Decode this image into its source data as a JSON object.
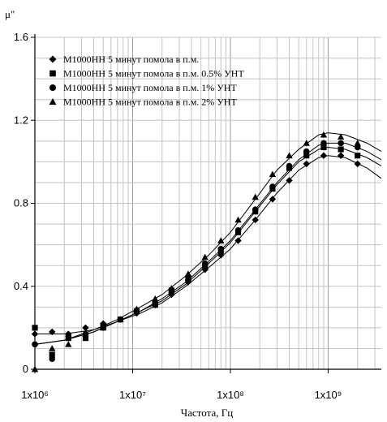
{
  "chart_data": {
    "type": "scatter",
    "xlabel": "Частота, Гц",
    "ylabel": "μ\"",
    "xscale": "log",
    "xlim": [
      1000000,
      3500000000
    ],
    "ylim": [
      0,
      1.6
    ],
    "grid": true,
    "legend_position": "top-left",
    "x_ticks": [
      {
        "value": 1000000,
        "label": "1x10⁶"
      },
      {
        "value": 10000000,
        "label": "1x10⁷"
      },
      {
        "value": 100000000,
        "label": "1x10⁸"
      },
      {
        "value": 1000000000,
        "label": "1x10⁹"
      }
    ],
    "y_ticks": [
      {
        "value": 0,
        "label": "0"
      },
      {
        "value": 0.4,
        "label": "0.4"
      },
      {
        "value": 0.8,
        "label": "0.8"
      },
      {
        "value": 1.2,
        "label": "1.2"
      },
      {
        "value": 1.6,
        "label": "1.6"
      }
    ],
    "series": [
      {
        "name": "М1000НН 5 минут помола в п.м.",
        "marker": "diamond",
        "points": [
          [
            1000000,
            0.17
          ],
          [
            1500000,
            0.18
          ],
          [
            2200000,
            0.17
          ],
          [
            3300000,
            0.2
          ],
          [
            5000000,
            0.22
          ],
          [
            7500000,
            0.24
          ],
          [
            11000000,
            0.27
          ],
          [
            17000000,
            0.31
          ],
          [
            25000000,
            0.36
          ],
          [
            37000000,
            0.42
          ],
          [
            55000000,
            0.48
          ],
          [
            80000000,
            0.55
          ],
          [
            120000000,
            0.62
          ],
          [
            180000000,
            0.72
          ],
          [
            270000000,
            0.82
          ],
          [
            400000000,
            0.91
          ],
          [
            600000000,
            0.99
          ],
          [
            900000000,
            1.03
          ],
          [
            1350000000,
            1.03
          ],
          [
            2000000000,
            0.99
          ]
        ],
        "curve": [
          [
            1000000,
            0.17
          ],
          [
            2000000,
            0.17
          ],
          [
            4000000,
            0.19
          ],
          [
            7000000,
            0.23
          ],
          [
            12000000,
            0.27
          ],
          [
            20000000,
            0.32
          ],
          [
            35000000,
            0.4
          ],
          [
            60000000,
            0.49
          ],
          [
            100000000,
            0.58
          ],
          [
            180000000,
            0.72
          ],
          [
            300000000,
            0.85
          ],
          [
            500000000,
            0.96
          ],
          [
            800000000,
            1.02
          ],
          [
            1000000000,
            1.03
          ],
          [
            1500000000,
            1.02
          ],
          [
            2500000000,
            0.97
          ],
          [
            3500000000,
            0.92
          ]
        ]
      },
      {
        "name": "М1000НН 5 минут помола в п.м. 0.5% УНТ",
        "marker": "square",
        "points": [
          [
            1000000,
            0.2
          ],
          [
            1500000,
            0.07
          ],
          [
            2200000,
            0.15
          ],
          [
            3300000,
            0.15
          ],
          [
            5000000,
            0.21
          ],
          [
            7500000,
            0.24
          ],
          [
            11000000,
            0.28
          ],
          [
            17000000,
            0.31
          ],
          [
            25000000,
            0.38
          ],
          [
            37000000,
            0.44
          ],
          [
            55000000,
            0.5
          ],
          [
            80000000,
            0.57
          ],
          [
            120000000,
            0.66
          ],
          [
            180000000,
            0.76
          ],
          [
            270000000,
            0.87
          ],
          [
            400000000,
            0.97
          ],
          [
            600000000,
            1.03
          ],
          [
            900000000,
            1.07
          ],
          [
            1350000000,
            1.06
          ],
          [
            2000000000,
            1.03
          ]
        ],
        "curve": [
          [
            1000000,
            0.12
          ],
          [
            2000000,
            0.14
          ],
          [
            4000000,
            0.18
          ],
          [
            7000000,
            0.23
          ],
          [
            12000000,
            0.28
          ],
          [
            20000000,
            0.33
          ],
          [
            35000000,
            0.41
          ],
          [
            60000000,
            0.51
          ],
          [
            100000000,
            0.61
          ],
          [
            180000000,
            0.76
          ],
          [
            300000000,
            0.89
          ],
          [
            500000000,
            1.0
          ],
          [
            800000000,
            1.06
          ],
          [
            1000000000,
            1.07
          ],
          [
            1500000000,
            1.06
          ],
          [
            2500000000,
            1.02
          ],
          [
            3500000000,
            0.98
          ]
        ]
      },
      {
        "name": "М1000НН 5 минут помола в п.м. 1% УНТ",
        "marker": "circle",
        "points": [
          [
            1000000,
            0.12
          ],
          [
            1500000,
            0.05
          ],
          [
            2200000,
            0.16
          ],
          [
            3300000,
            0.17
          ],
          [
            5000000,
            0.2
          ],
          [
            7500000,
            0.24
          ],
          [
            11000000,
            0.28
          ],
          [
            17000000,
            0.32
          ],
          [
            25000000,
            0.37
          ],
          [
            37000000,
            0.43
          ],
          [
            55000000,
            0.51
          ],
          [
            80000000,
            0.58
          ],
          [
            120000000,
            0.67
          ],
          [
            180000000,
            0.77
          ],
          [
            270000000,
            0.88
          ],
          [
            400000000,
            0.98
          ],
          [
            600000000,
            1.05
          ],
          [
            900000000,
            1.09
          ],
          [
            1350000000,
            1.09
          ],
          [
            2000000000,
            1.07
          ]
        ],
        "curve": [
          [
            1000000,
            0.12
          ],
          [
            2000000,
            0.14
          ],
          [
            4000000,
            0.18
          ],
          [
            7000000,
            0.23
          ],
          [
            12000000,
            0.28
          ],
          [
            20000000,
            0.34
          ],
          [
            35000000,
            0.42
          ],
          [
            60000000,
            0.52
          ],
          [
            100000000,
            0.62
          ],
          [
            180000000,
            0.77
          ],
          [
            300000000,
            0.9
          ],
          [
            500000000,
            1.01
          ],
          [
            800000000,
            1.08
          ],
          [
            1000000000,
            1.09
          ],
          [
            1500000000,
            1.09
          ],
          [
            2500000000,
            1.05
          ],
          [
            3500000000,
            1.01
          ]
        ]
      },
      {
        "name": "М1000НН 5 минут помола в п.м. 2% УНТ",
        "marker": "triangle",
        "points": [
          [
            1000000,
            0.0
          ],
          [
            1500000,
            0.1
          ],
          [
            2200000,
            0.12
          ],
          [
            3300000,
            0.17
          ],
          [
            5000000,
            0.2
          ],
          [
            7500000,
            0.24
          ],
          [
            11000000,
            0.29
          ],
          [
            17000000,
            0.34
          ],
          [
            25000000,
            0.39
          ],
          [
            37000000,
            0.46
          ],
          [
            55000000,
            0.54
          ],
          [
            80000000,
            0.62
          ],
          [
            120000000,
            0.72
          ],
          [
            180000000,
            0.83
          ],
          [
            270000000,
            0.94
          ],
          [
            400000000,
            1.03
          ],
          [
            600000000,
            1.09
          ],
          [
            900000000,
            1.13
          ],
          [
            1350000000,
            1.12
          ],
          [
            2000000000,
            1.09
          ]
        ],
        "curve": [
          [
            1000000,
            0.12
          ],
          [
            2000000,
            0.14
          ],
          [
            4000000,
            0.19
          ],
          [
            7000000,
            0.24
          ],
          [
            12000000,
            0.3
          ],
          [
            20000000,
            0.36
          ],
          [
            35000000,
            0.45
          ],
          [
            60000000,
            0.55
          ],
          [
            100000000,
            0.66
          ],
          [
            180000000,
            0.82
          ],
          [
            300000000,
            0.96
          ],
          [
            500000000,
            1.06
          ],
          [
            800000000,
            1.13
          ],
          [
            1000000000,
            1.14
          ],
          [
            1500000000,
            1.13
          ],
          [
            2500000000,
            1.09
          ],
          [
            3500000000,
            1.05
          ]
        ]
      }
    ]
  }
}
